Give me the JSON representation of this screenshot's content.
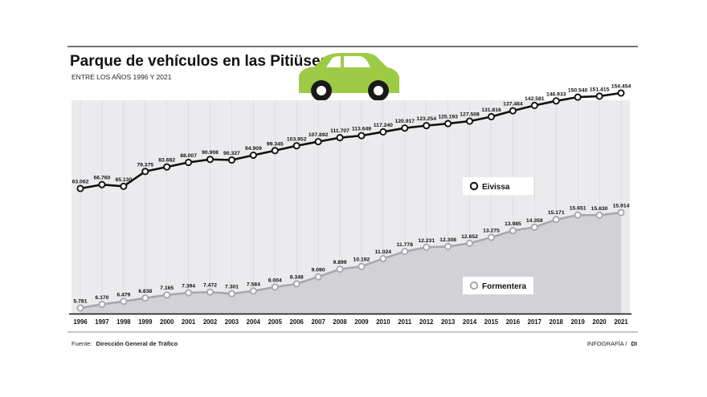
{
  "title": "Parque de vehículos en las Pitiüses",
  "subtitle": "ENTRE LOS AÑOS 1996 Y 2021",
  "source_label": "Fuente:",
  "source_name": "Dirección General de Tráfico",
  "credit_label": "INFOGRAFÍA /",
  "credit_name": "DI",
  "icons": {
    "car": "car-icon"
  },
  "colors": {
    "eivissa_line": "#111111",
    "formentera_line": "#a8a8ac",
    "panel_fill": "#ebebee",
    "formentera_area": "#d2d2d6",
    "car_body": "#9ecb45"
  },
  "chart_data": [
    {
      "type": "line",
      "title": "",
      "xlabel": "",
      "ylabel": "",
      "x": [
        1996,
        1997,
        1998,
        1999,
        2000,
        2001,
        2002,
        2003,
        2004,
        2005,
        2006,
        2007,
        2008,
        2009,
        2010,
        2011,
        2012,
        2013,
        2014,
        2015,
        2016,
        2017,
        2018,
        2019,
        2020,
        2021
      ],
      "series": [
        {
          "name": "Eivissa",
          "values": [
            63062,
            66760,
            65130,
            79375,
            83682,
            88007,
            90908,
            90327,
            94909,
            99345,
            103952,
            107892,
            111707,
            113649,
            117240,
            120917,
            123254,
            125193,
            127508,
            131816,
            137464,
            142581,
            146933,
            150540,
            151415,
            154454
          ],
          "labels": [
            "63.062",
            "66.760",
            "65.130",
            "79.375",
            "83.682",
            "88.007",
            "90.908",
            "90.327",
            "94.909",
            "99.345",
            "103.952",
            "107.892",
            "111.707",
            "113.649",
            "117.240",
            "120.917",
            "123.254",
            "125.193",
            "127.508",
            "131.816",
            "137.464",
            "142.581",
            "146.933",
            "150.540",
            "151.415",
            "154.454"
          ]
        }
      ],
      "ylim": [
        60000,
        156000
      ],
      "grid": true,
      "legend": "lower-right"
    },
    {
      "type": "area",
      "title": "",
      "xlabel": "",
      "ylabel": "",
      "x": [
        1996,
        1997,
        1998,
        1999,
        2000,
        2001,
        2002,
        2003,
        2004,
        2005,
        2006,
        2007,
        2008,
        2009,
        2010,
        2011,
        2012,
        2013,
        2014,
        2015,
        2016,
        2017,
        2018,
        2019,
        2020,
        2021
      ],
      "series": [
        {
          "name": "Formentera",
          "values": [
            5781,
            6170,
            6479,
            6838,
            7165,
            7394,
            7472,
            7301,
            7584,
            8004,
            8348,
            9090,
            9899,
            10192,
            11024,
            11778,
            12231,
            12308,
            12652,
            13275,
            13985,
            14359,
            15171,
            15651,
            15630,
            15914
          ],
          "labels": [
            "5.781",
            "6.170",
            "6.479",
            "6.838",
            "7.165",
            "7.394",
            "7.472",
            "7.301",
            "7.584",
            "8.004",
            "8.348",
            "9.090",
            "9.899",
            "10.192",
            "11.024",
            "11.778",
            "12.231",
            "12.308",
            "12.652",
            "13.275",
            "13.985",
            "14.359",
            "15.171",
            "15.651",
            "15.630",
            "15.914"
          ]
        }
      ],
      "ylim": [
        5000,
        16500
      ],
      "grid": true,
      "legend": "lower-right"
    }
  ]
}
